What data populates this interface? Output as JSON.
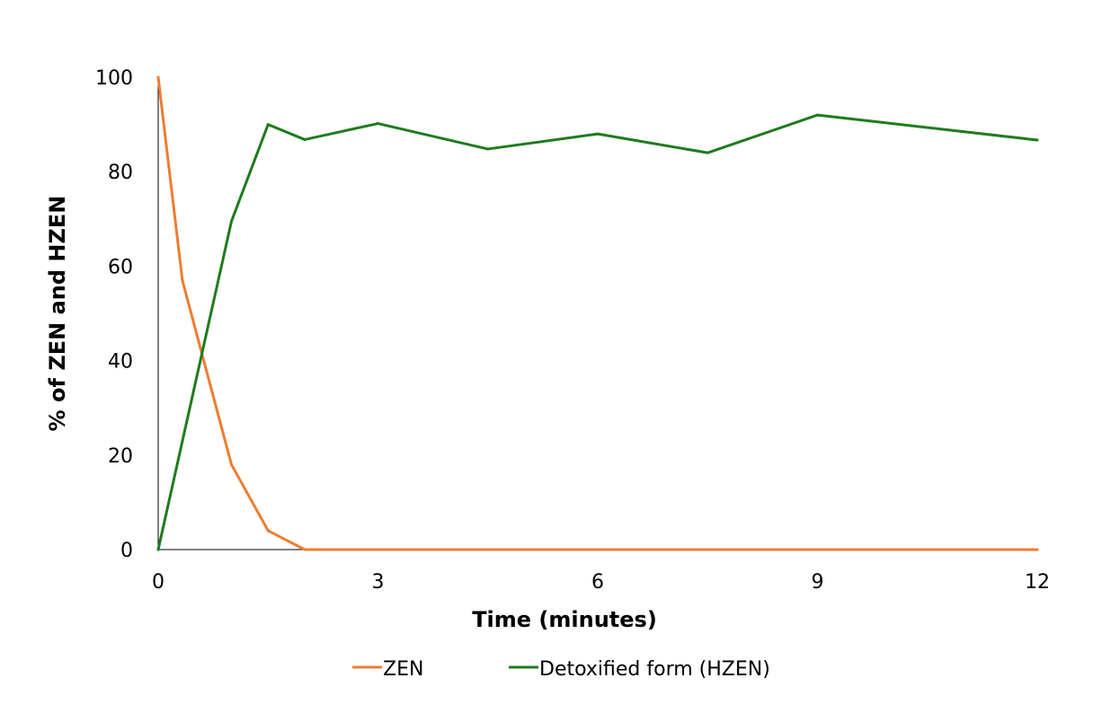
{
  "chart_data": {
    "type": "line",
    "title": "",
    "xlabel": "Time (minutes)",
    "ylabel": "% of ZEN and HZEN",
    "xlim": [
      0,
      12
    ],
    "ylim": [
      0,
      100
    ],
    "xticks": [
      0,
      3,
      6,
      9,
      12
    ],
    "yticks": [
      0,
      20,
      40,
      60,
      80,
      100
    ],
    "xtick_labels": [
      "0",
      "3",
      "6",
      "9",
      "12"
    ],
    "ytick_labels": [
      "0",
      "20",
      "40",
      "60",
      "80",
      "100"
    ],
    "grid": false,
    "legend_position": "bottom",
    "series": [
      {
        "name": "ZEN",
        "color": "#ED7D31",
        "points": [
          {
            "x": 0,
            "y": 100
          },
          {
            "x": 0.33,
            "y": 57
          },
          {
            "x": 1,
            "y": 18
          },
          {
            "x": 1.5,
            "y": 4
          },
          {
            "x": 2,
            "y": 0
          },
          {
            "x": 3,
            "y": 0
          },
          {
            "x": 4.5,
            "y": 0
          },
          {
            "x": 6,
            "y": 0
          },
          {
            "x": 7.5,
            "y": 0
          },
          {
            "x": 9,
            "y": 0
          },
          {
            "x": 12,
            "y": 0
          }
        ]
      },
      {
        "name": "Detoxified form (HZEN)",
        "color": "#1E7B1E",
        "points": [
          {
            "x": 0,
            "y": 0
          },
          {
            "x": 1,
            "y": 69.5
          },
          {
            "x": 1.5,
            "y": 90
          },
          {
            "x": 2,
            "y": 86.8
          },
          {
            "x": 3,
            "y": 90.2
          },
          {
            "x": 4.5,
            "y": 84.8
          },
          {
            "x": 6,
            "y": 88
          },
          {
            "x": 7.5,
            "y": 84
          },
          {
            "x": 9,
            "y": 92
          },
          {
            "x": 12,
            "y": 86.7
          }
        ]
      }
    ]
  }
}
